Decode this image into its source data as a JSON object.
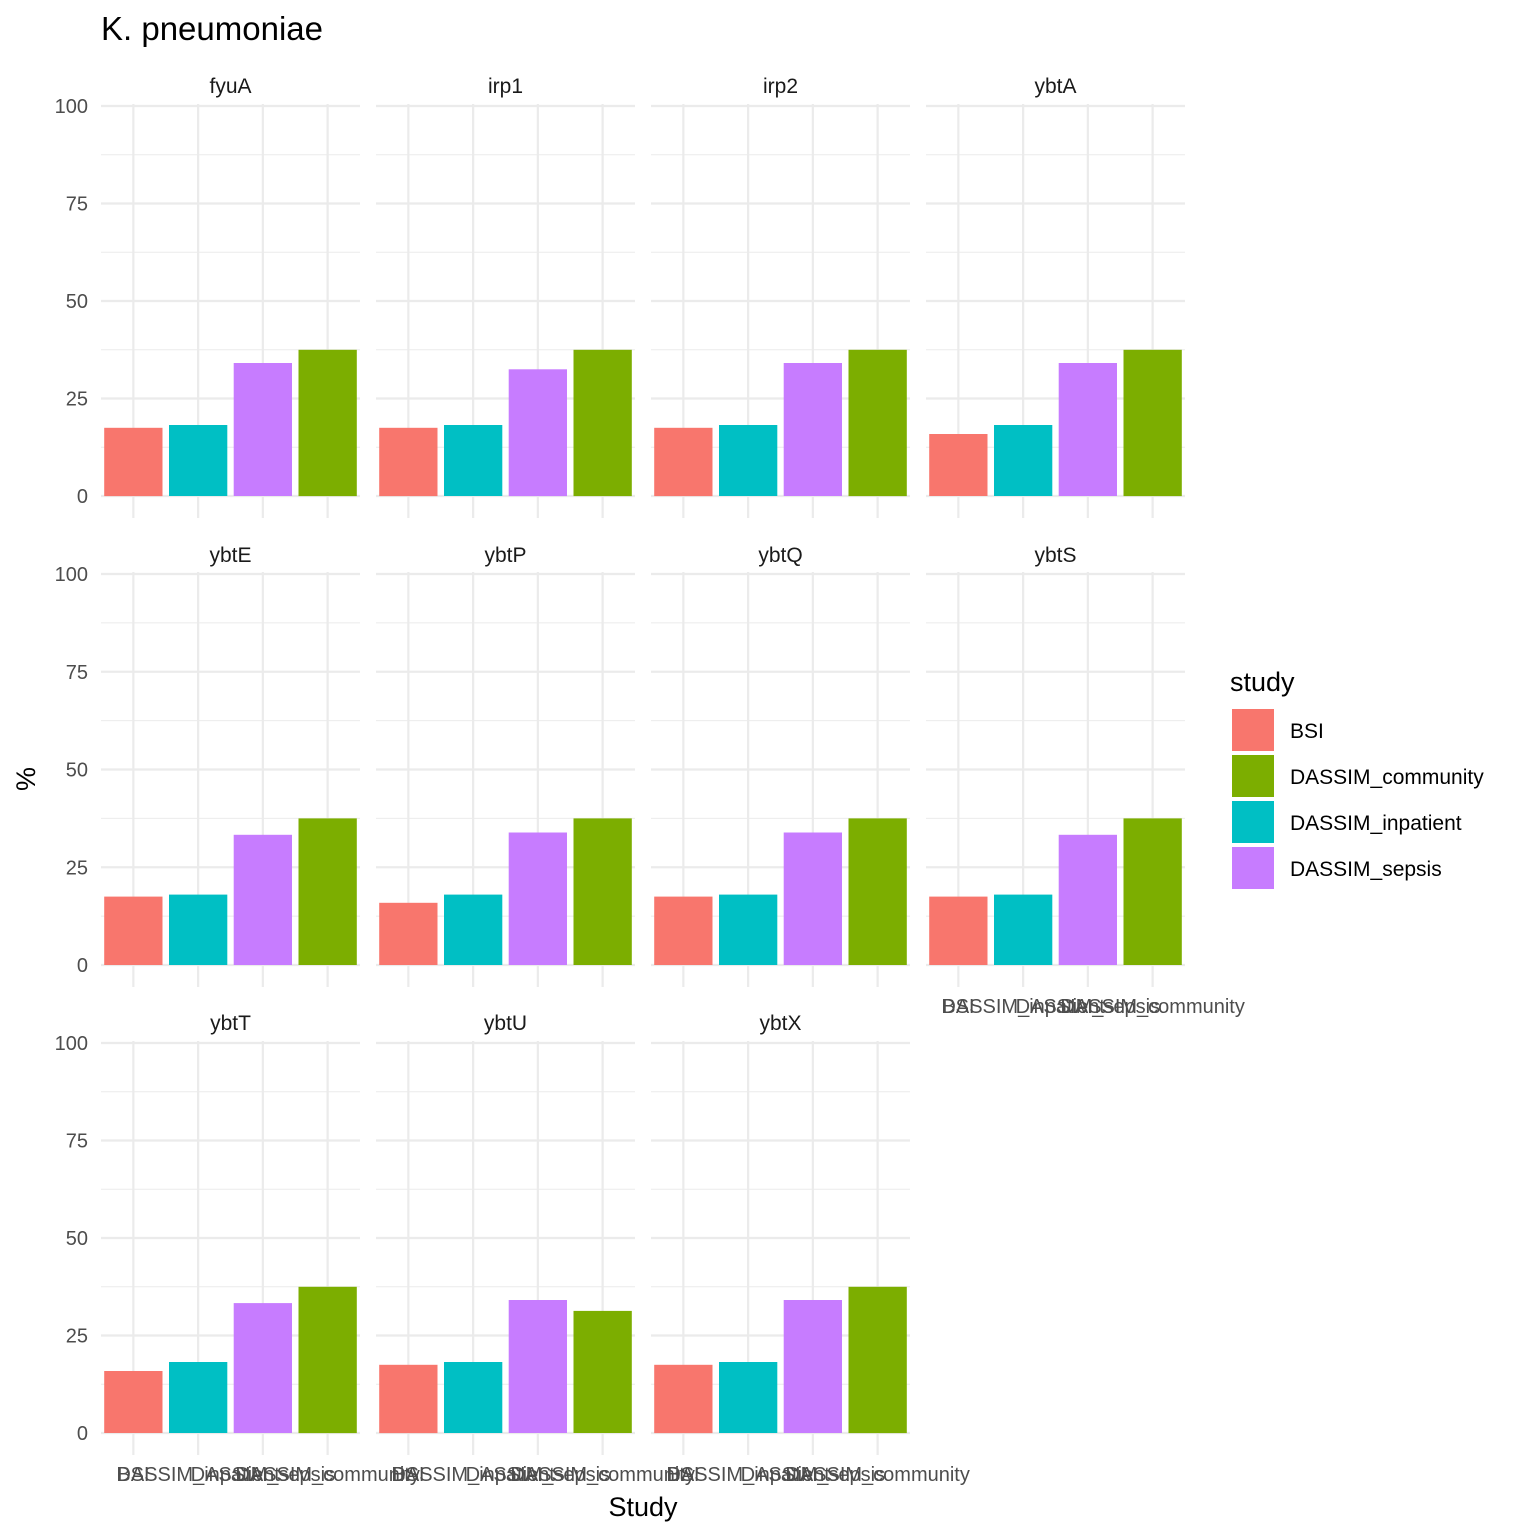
{
  "chart_data": {
    "type": "bar",
    "title": "K. pneumoniae",
    "xlabel": "Study",
    "ylabel": "%",
    "ylim": [
      0,
      100
    ],
    "yticks": [
      0,
      25,
      50,
      75,
      100
    ],
    "grid": true,
    "legend": {
      "title": "study",
      "placement": "right",
      "entries": [
        {
          "name": "BSI",
          "color": "#F8766D"
        },
        {
          "name": "DASSIM_community",
          "color": "#7CAE00"
        },
        {
          "name": "DASSIM_inpatient",
          "color": "#00BFC4"
        },
        {
          "name": "DASSIM_sepsis",
          "color": "#C77CFF"
        }
      ]
    },
    "categories": [
      "BSI",
      "DASSIM_inpatient",
      "DASSIM_sepsis",
      "DASSIM_community"
    ],
    "category_colors": [
      "#F8766D",
      "#00BFC4",
      "#C77CFF",
      "#7CAE00"
    ],
    "facets": [
      {
        "name": "fyuA",
        "values": [
          17.5,
          18.2,
          34.1,
          37.5
        ]
      },
      {
        "name": "irp1",
        "values": [
          17.5,
          18.2,
          32.5,
          37.5
        ]
      },
      {
        "name": "irp2",
        "values": [
          17.5,
          18.2,
          34.1,
          37.5
        ]
      },
      {
        "name": "ybtA",
        "values": [
          15.9,
          18.2,
          34.1,
          37.5
        ]
      },
      {
        "name": "ybtE",
        "values": [
          17.5,
          18.0,
          33.3,
          37.5
        ]
      },
      {
        "name": "ybtP",
        "values": [
          15.9,
          18.0,
          33.9,
          37.5
        ]
      },
      {
        "name": "ybtQ",
        "values": [
          17.5,
          18.0,
          33.9,
          37.5
        ]
      },
      {
        "name": "ybtS",
        "values": [
          17.5,
          18.0,
          33.3,
          37.5
        ]
      },
      {
        "name": "ybtT",
        "values": [
          15.9,
          18.2,
          33.3,
          37.5
        ]
      },
      {
        "name": "ybtU",
        "values": [
          17.5,
          18.2,
          34.1,
          31.3
        ]
      },
      {
        "name": "ybtX",
        "values": [
          17.5,
          18.2,
          34.1,
          37.5
        ]
      }
    ]
  }
}
